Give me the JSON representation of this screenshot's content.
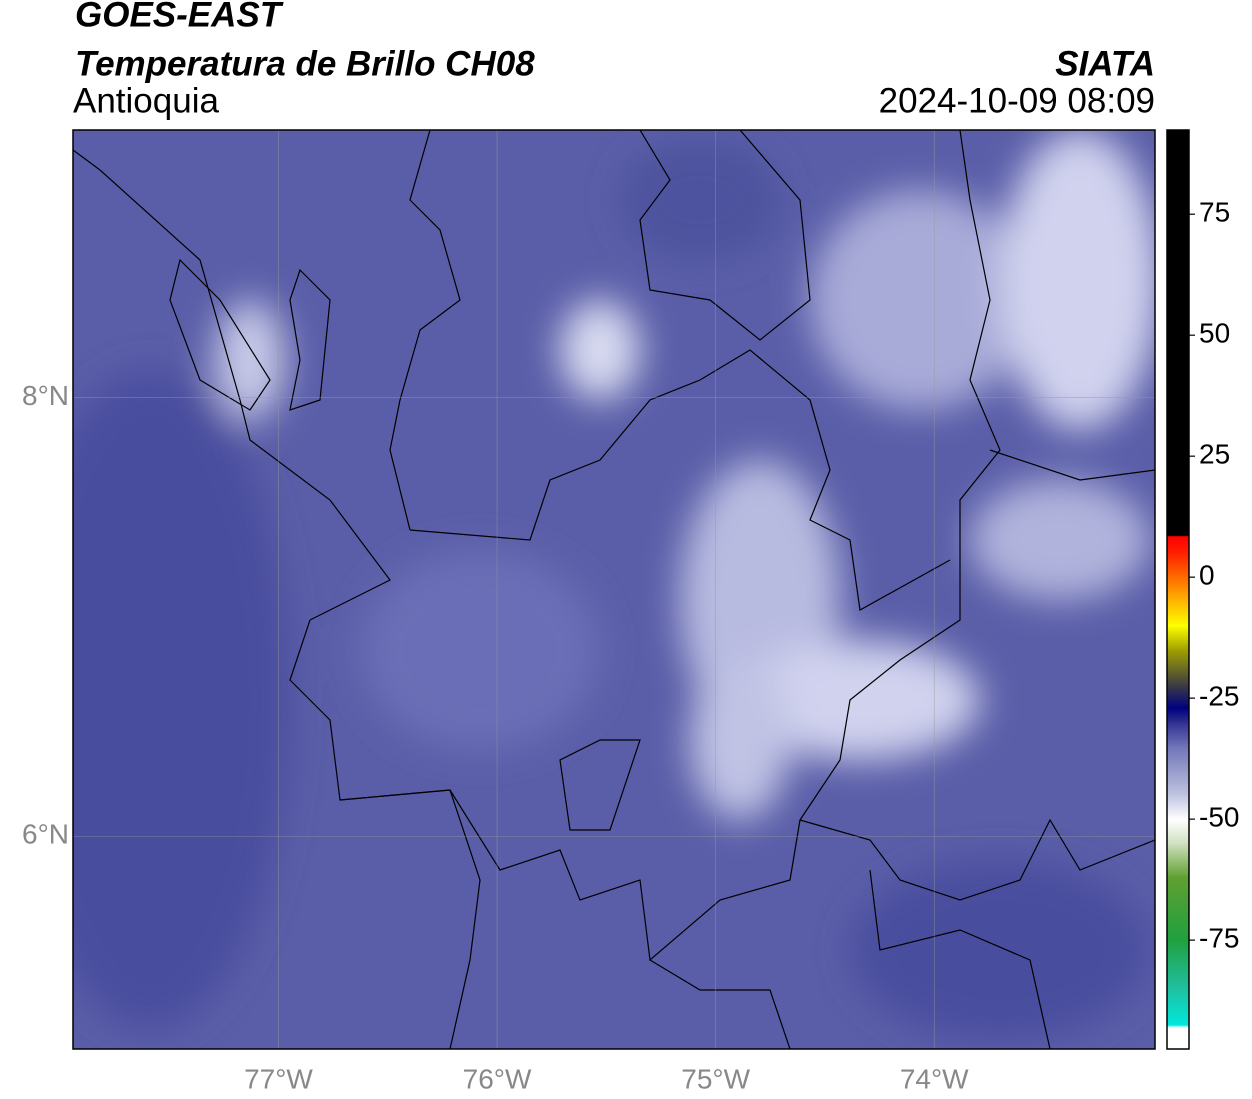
{
  "chart_data": {
    "type": "map",
    "title": "GOES-EAST",
    "subtitle": "Temperatura de Brillo CH08",
    "region": "Antioquia",
    "source": "SIATA",
    "timestamp": "2024-10-09 08:09",
    "xlim": [
      -77.94,
      -72.99
    ],
    "ylim": [
      5.03,
      9.22
    ],
    "xticks": [
      {
        "value": -77,
        "label": "77°W"
      },
      {
        "value": -76,
        "label": "76°W"
      },
      {
        "value": -75,
        "label": "75°W"
      },
      {
        "value": -74,
        "label": "74°W"
      }
    ],
    "yticks": [
      {
        "value": 6,
        "label": "6°N"
      },
      {
        "value": 8,
        "label": "8°N"
      }
    ],
    "grid": true,
    "colorbar": {
      "clim": [
        -97.5,
        92.4
      ],
      "ticks": [
        -75,
        -50,
        -25,
        0,
        25,
        50,
        75
      ],
      "colormap": [
        [
          -97.5,
          "#ffffff"
        ],
        [
          -93,
          "#ffffff"
        ],
        [
          -92.5,
          "#00e8dc"
        ],
        [
          -85,
          "#20c0a0"
        ],
        [
          -75,
          "#20a040"
        ],
        [
          -62,
          "#60a030"
        ],
        [
          -55,
          "#d0e0c0"
        ],
        [
          -50,
          "#ffffff"
        ],
        [
          -45,
          "#c0c4e0"
        ],
        [
          -35,
          "#7074b8"
        ],
        [
          -30,
          "#303090"
        ],
        [
          -27,
          "#000080"
        ],
        [
          -22,
          "#404040"
        ],
        [
          -15,
          "#a0a000"
        ],
        [
          -10,
          "#ffff00"
        ],
        [
          -3,
          "#ff9900"
        ],
        [
          5,
          "#ff2000"
        ],
        [
          8.5,
          "#ff0000"
        ],
        [
          8.6,
          "#000000"
        ],
        [
          92.4,
          "#000000"
        ]
      ]
    }
  }
}
